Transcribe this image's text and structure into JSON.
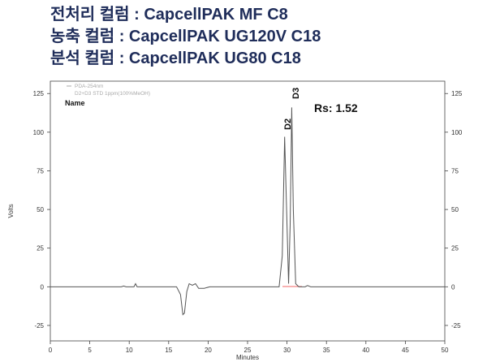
{
  "header": {
    "lines": [
      "전처리 컬럼 : CapcellPAK MF C8",
      "농축 컬럼    : CapcellPAK UG120V C18",
      "분석 컬럼    : CapcellPAK UG80 C18"
    ]
  },
  "chart_data": {
    "type": "line",
    "xlabel": "Minutes",
    "ylabel": "Volts",
    "xlim": [
      0,
      50
    ],
    "ylim": [
      -35,
      133
    ],
    "xticks": [
      0,
      5,
      10,
      15,
      20,
      25,
      30,
      35,
      40,
      45,
      50
    ],
    "yticks": [
      -25,
      0,
      25,
      50,
      75,
      100,
      125
    ],
    "legend_title": "Name",
    "series": [
      {
        "name": "PDA-254nm",
        "description": "D2+D3 STD 1ppm(100%MeOH)",
        "color": "#555555",
        "x": [
          0,
          9.0,
          9.3,
          9.6,
          10.6,
          10.8,
          11.0,
          16.0,
          16.5,
          16.8,
          17.0,
          17.3,
          17.6,
          18.0,
          18.4,
          18.8,
          19.5,
          20.2,
          29.0,
          29.4,
          29.7,
          30.0,
          30.2,
          30.4,
          30.6,
          30.8,
          31.1,
          31.5,
          32.3,
          32.6,
          33.0,
          50
        ],
        "values": [
          0,
          0,
          0.5,
          0,
          0,
          2,
          0,
          0,
          -5,
          -18,
          -17,
          -3,
          2,
          1,
          2,
          -1,
          -1,
          0,
          0,
          20,
          97,
          40,
          2,
          40,
          116,
          50,
          2,
          0,
          0,
          0.8,
          0,
          0
        ]
      }
    ],
    "annotations": [
      "D2",
      "D3",
      "Rs: 1.52"
    ]
  }
}
